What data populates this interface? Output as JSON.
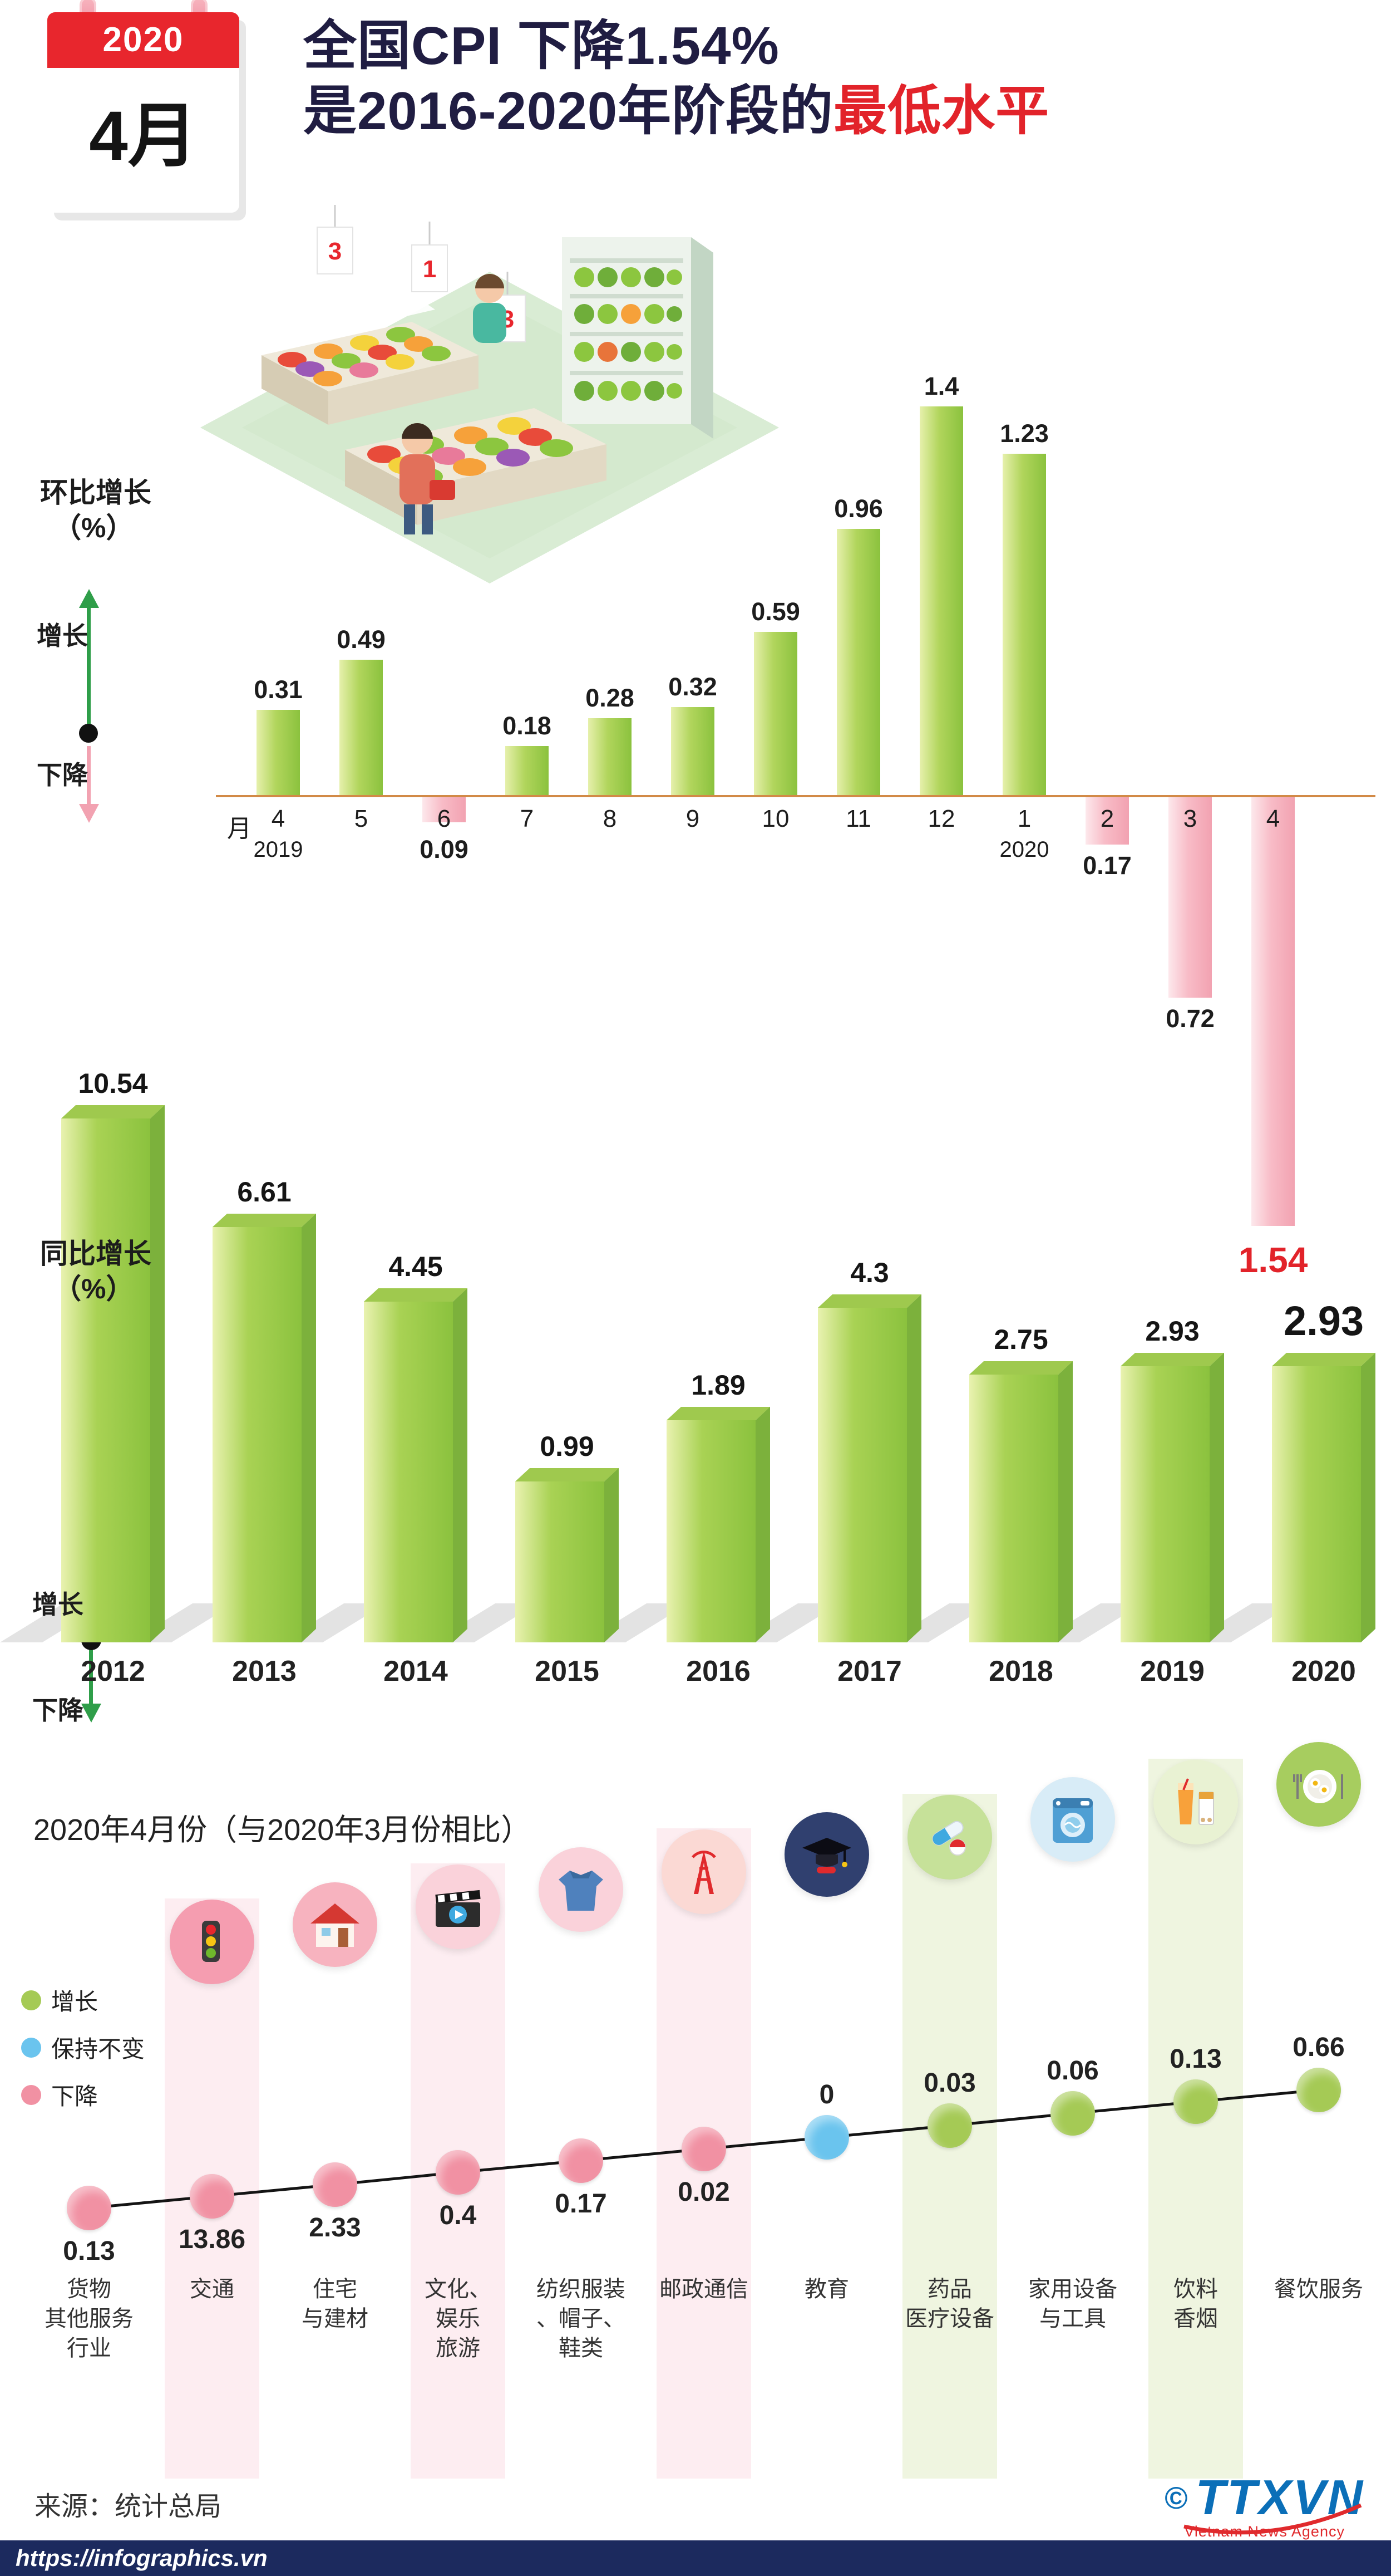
{
  "colors": {
    "red": "#e2232a",
    "dark_title": "#201d42",
    "green_bar": "#8bc23e",
    "pink_bar": "#f2a2b1",
    "axis_orange": "#d28a47",
    "footer_navy": "#1c2a5e",
    "logo_blue": "#0b6fb8"
  },
  "header": {
    "calendar_year": "2020",
    "calendar_month": "4月",
    "title1_main": "全国CPI 下降",
    "title1_value": "1.54%",
    "title2_pre": "是",
    "title2_range": "2016-2020",
    "title2_mid": "年阶段的",
    "title2_highlight": "最低水平"
  },
  "chart_data": [
    {
      "type": "bar",
      "name": "month_on_month_cpi_change",
      "side_label": "环比增长",
      "side_label_unit": "（%）",
      "legend_up": "增长",
      "legend_down": "下降",
      "axis_unit": "月",
      "categories": [
        "4",
        "5",
        "6",
        "7",
        "8",
        "9",
        "10",
        "11",
        "12",
        "1",
        "2",
        "3",
        "4"
      ],
      "values": [
        0.31,
        0.49,
        -0.09,
        0.18,
        0.28,
        0.32,
        0.59,
        0.96,
        1.4,
        1.23,
        -0.17,
        -0.72,
        -1.54
      ],
      "labels": [
        "0.31",
        "0.49",
        "0.09",
        "0.18",
        "0.28",
        "0.32",
        "0.59",
        "0.96",
        "1.4",
        "1.23",
        "0.17",
        "0.72",
        "1.54"
      ],
      "year_markers": [
        {
          "index": 0,
          "label": "2019"
        },
        {
          "index": 9,
          "label": "2020"
        }
      ],
      "highlight_index": 12
    },
    {
      "type": "bar",
      "name": "year_on_year_cpi_change",
      "side_label": "同比增长",
      "side_label_unit": "（%）",
      "legend_up": "增长",
      "legend_down": "下降",
      "categories": [
        "2012",
        "2013",
        "2014",
        "2015",
        "2016",
        "2017",
        "2018",
        "2019",
        "2020"
      ],
      "values": [
        10.54,
        6.61,
        4.45,
        0.99,
        1.89,
        4.3,
        2.75,
        2.93,
        2.93
      ],
      "labels": [
        "10.54",
        "6.61",
        "4.45",
        "0.99",
        "1.89",
        "4.3",
        "2.75",
        "2.93",
        "2.93"
      ],
      "highlight_index": 8
    },
    {
      "type": "dot-line",
      "name": "april_2020_vs_march_2020_by_category",
      "title": "2020年4月份（与2020年3月份相比）",
      "legend": [
        {
          "label": "增长",
          "color": "#a5ca55"
        },
        {
          "label": "保持不变",
          "color": "#6ac4ee"
        },
        {
          "label": "下降",
          "color": "#f191a3"
        }
      ],
      "categories": [
        "货物\n其他服务\n行业",
        "交通",
        "住宅\n与建材",
        "文化、\n娱乐\n旅游",
        "纺织服装\n、帽子、\n鞋类",
        "邮政通信",
        "教育",
        "药品\n医疗设备",
        "家用设备\n与工具",
        "饮料\n香烟",
        "餐饮服务"
      ],
      "values": [
        0.13,
        13.86,
        2.33,
        0.4,
        0.17,
        0.02,
        0,
        0.03,
        0.06,
        0.13,
        0.66
      ],
      "labels": [
        "0.13",
        "13.86",
        "2.33",
        "0.4",
        "0.17",
        "0.02",
        "0",
        "0.03",
        "0.06",
        "0.13",
        "0.66"
      ],
      "directions": [
        "down",
        "down",
        "down",
        "down",
        "down",
        "down",
        "flat",
        "up",
        "up",
        "up",
        "up"
      ],
      "icons": [
        "none",
        "traffic-light",
        "house",
        "clapperboard",
        "clothing",
        "antenna-tower",
        "graduation-cap",
        "pills",
        "washing-machine",
        "drinks-cigarettes",
        "food-plate"
      ]
    }
  ],
  "footer": {
    "source": "来源：统计总局",
    "logo_copyright": "©",
    "logo_text": "TTXVN",
    "logo_caption": "Vietnam News Agency",
    "url": "https://infographics.vn"
  }
}
